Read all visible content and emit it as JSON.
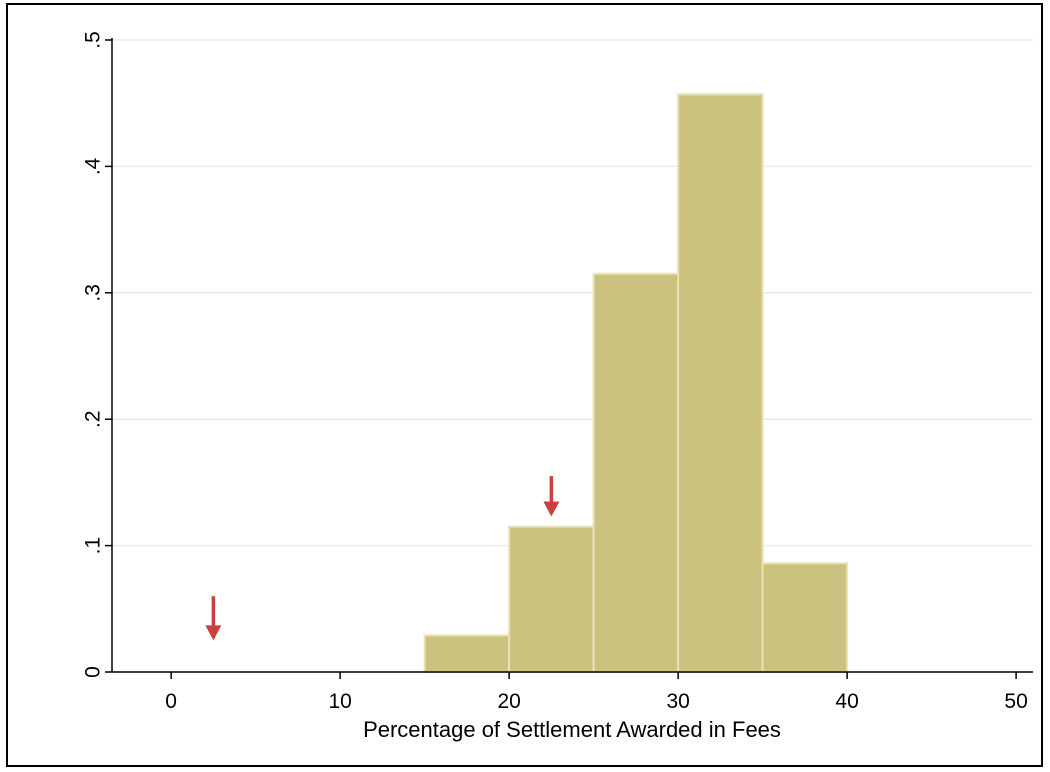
{
  "chart_data": {
    "type": "bar",
    "subtype": "histogram",
    "title": "",
    "xlabel": "Percentage of Settlement Awarded in Fees",
    "ylabel": "",
    "xlim": [
      -3.5,
      51
    ],
    "ylim": [
      0,
      0.5
    ],
    "x_ticks": [
      0,
      10,
      20,
      30,
      40,
      50
    ],
    "x_tick_labels": [
      "0",
      "10",
      "20",
      "30",
      "40",
      "50"
    ],
    "y_ticks": [
      0,
      0.1,
      0.2,
      0.3,
      0.4,
      0.5
    ],
    "y_tick_labels": [
      "0",
      ".1",
      ".2",
      ".3",
      ".4",
      ".5"
    ],
    "y_tick_label_rotation": "vertical",
    "bins": [
      {
        "start": 15,
        "end": 20,
        "value": 0.029
      },
      {
        "start": 20,
        "end": 25,
        "value": 0.115
      },
      {
        "start": 25,
        "end": 30,
        "value": 0.315
      },
      {
        "start": 30,
        "end": 35,
        "value": 0.457
      },
      {
        "start": 35,
        "end": 40,
        "value": 0.086
      }
    ],
    "annotations": [
      {
        "type": "arrow-down",
        "x": 2.5,
        "y_tip": 0.025,
        "y_tail": 0.06
      },
      {
        "type": "arrow-down",
        "x": 22.5,
        "y_tip": 0.123,
        "y_tail": 0.155
      }
    ],
    "grid": "horizontal",
    "legend": "none"
  },
  "colors": {
    "bar_fill": "#cbc27f",
    "bar_edge": "#e8e2b5",
    "grid": "#e4ecee",
    "arrow": "#c9413b",
    "axis": "#000000",
    "background": "#ffffff"
  }
}
